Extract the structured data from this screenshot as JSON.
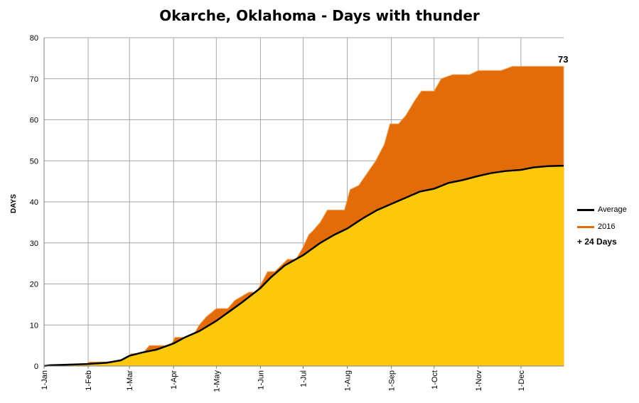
{
  "chart_data": {
    "type": "area",
    "title": "Okarche, Oklahoma - Days with thunder",
    "xlabel": "",
    "ylabel": "DAYS",
    "ylim": [
      0,
      80
    ],
    "yticks": [
      0,
      10,
      20,
      30,
      40,
      50,
      60,
      70,
      80
    ],
    "x_tick_labels": [
      "1-Jan",
      "1-Feb",
      "1-Mar",
      "1-Apr",
      "1-May",
      "1-Jun",
      "1-Jul",
      "1-Aug",
      "1-Sep",
      "1-Oct",
      "1-Nov",
      "1-Dec"
    ],
    "x_tick_days": [
      1,
      32,
      61,
      92,
      122,
      153,
      183,
      214,
      245,
      275,
      306,
      336
    ],
    "x_range_days": [
      1,
      366
    ],
    "grid": true,
    "legend_position": "right",
    "series": [
      {
        "name": "Average",
        "color": "#000000",
        "fill": "#fcc80c",
        "x": [
          1,
          5,
          15,
          32,
          45,
          55,
          61,
          70,
          80,
          92,
          100,
          110,
          122,
          130,
          140,
          153,
          160,
          170,
          183,
          195,
          205,
          214,
          225,
          235,
          245,
          255,
          265,
          275,
          285,
          295,
          306,
          315,
          325,
          336,
          345,
          355,
          366
        ],
        "y": [
          0,
          0.2,
          0.3,
          0.5,
          0.8,
          1.4,
          2.5,
          3.3,
          4.0,
          5.5,
          7.0,
          8.5,
          11.0,
          13.0,
          15.5,
          19.0,
          21.5,
          24.5,
          27.0,
          30.0,
          32.0,
          33.5,
          36.0,
          38.0,
          39.5,
          41.0,
          42.5,
          43.2,
          44.6,
          45.3,
          46.3,
          47.0,
          47.5,
          47.8,
          48.4,
          48.7,
          48.8
        ]
      },
      {
        "name": "2016",
        "color": "#e36c0a",
        "fill": "#e36c0a",
        "x": [
          1,
          5,
          30,
          33,
          60,
          62,
          70,
          75,
          90,
          93,
          105,
          110,
          115,
          122,
          130,
          135,
          145,
          150,
          155,
          158,
          163,
          172,
          178,
          183,
          187,
          190,
          195,
          200,
          212,
          216,
          222,
          230,
          234,
          240,
          244,
          250,
          255,
          262,
          266,
          275,
          280,
          288,
          300,
          306,
          322,
          330,
          350,
          366
        ],
        "y": [
          0,
          0.3,
          0.5,
          1,
          1,
          3,
          3,
          5,
          5,
          7,
          7,
          10,
          12,
          14,
          14,
          16,
          18,
          18,
          21,
          23,
          23,
          26,
          26,
          29,
          32,
          33,
          35,
          38,
          38,
          43,
          44,
          48,
          50,
          54,
          59,
          59,
          61,
          65,
          67,
          67,
          70,
          71,
          71,
          72,
          72,
          73,
          73,
          73
        ]
      }
    ],
    "annotations": {
      "end_value": "73",
      "difference": "+ 24 Days"
    }
  }
}
